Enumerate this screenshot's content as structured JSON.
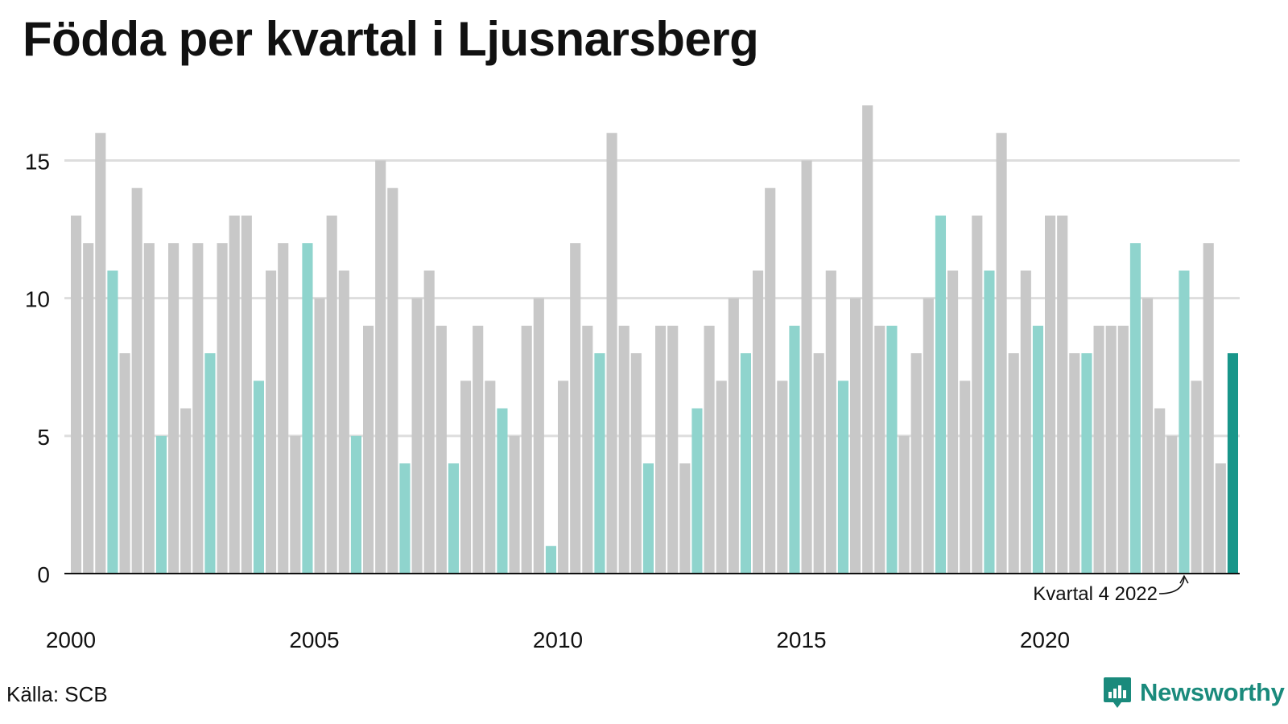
{
  "title": "Födda per kvartal i Ljusnarsberg",
  "source": "Källa: SCB",
  "brand": "Newsworthy",
  "colors": {
    "bar_default": "#c8c8c8",
    "bar_q4": "#8fd4cd",
    "bar_latest": "#18968a",
    "gridline": "#dddddd",
    "axis": "#111111",
    "brand": "#1a8a7c"
  },
  "chart_data": {
    "type": "bar",
    "title": "Födda per kvartal i Ljusnarsberg",
    "xlabel": "",
    "ylabel": "",
    "ylim": [
      0,
      17
    ],
    "yticks": [
      0,
      5,
      10,
      15
    ],
    "grid": true,
    "xtick_labels": [
      "2000",
      "2005",
      "2010",
      "2015",
      "2020"
    ],
    "start_year": 2000,
    "end_year": 2022,
    "annotation": "Kvartal 4 2022",
    "values": [
      13,
      12,
      16,
      11,
      8,
      14,
      12,
      5,
      12,
      6,
      12,
      8,
      12,
      13,
      13,
      7,
      11,
      12,
      5,
      12,
      10,
      13,
      11,
      5,
      9,
      15,
      14,
      4,
      10,
      11,
      9,
      4,
      7,
      9,
      7,
      6,
      5,
      9,
      10,
      1,
      7,
      12,
      9,
      8,
      16,
      9,
      8,
      4,
      9,
      9,
      4,
      6,
      9,
      7,
      10,
      8,
      11,
      14,
      7,
      9,
      15,
      8,
      11,
      7,
      10,
      17,
      9,
      9,
      5,
      8,
      10,
      13,
      11,
      7,
      13,
      11,
      16,
      8,
      11,
      9,
      13,
      13,
      8,
      8,
      9,
      9,
      9,
      12,
      10,
      6,
      5,
      11,
      7,
      12,
      4,
      8
    ]
  }
}
